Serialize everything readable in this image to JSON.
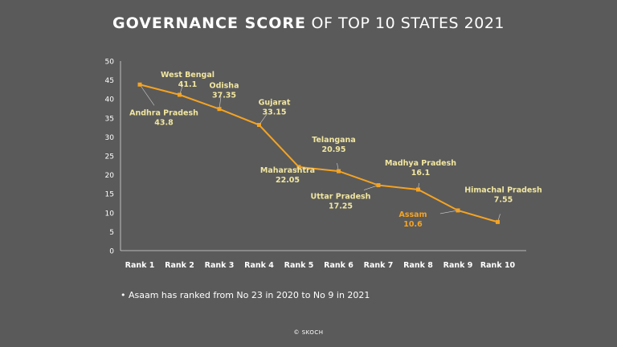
{
  "title": {
    "bold": "GOVERNANCE SCORE",
    "rest": "OF TOP 10 STATES 2021"
  },
  "chart_data": {
    "type": "line",
    "categories": [
      "Rank 1",
      "Rank 2",
      "Rank 3",
      "Rank 4",
      "Rank 5",
      "Rank 6",
      "Rank 7",
      "Rank 8",
      "Rank 9",
      "Rank 10"
    ],
    "series": [
      {
        "values": [
          43.8,
          41.1,
          37.35,
          33.15,
          22.05,
          20.95,
          17.25,
          16.1,
          10.6,
          7.55
        ],
        "color": "#f4a323"
      }
    ],
    "point_labels": [
      {
        "state": "Andhra Pradesh",
        "value": "43.8",
        "color": "#f1e6a0"
      },
      {
        "state": "West Bengal",
        "value": "41.1",
        "color": "#f1e6a0"
      },
      {
        "state": "Odisha",
        "value": "37.35",
        "color": "#f1e6a0"
      },
      {
        "state": "Gujarat",
        "value": "33.15",
        "color": "#f1e6a0"
      },
      {
        "state": "Maharashtra",
        "value": "22.05",
        "color": "#f1e6a0"
      },
      {
        "state": "Telangana",
        "value": "20.95",
        "color": "#f1e6a0"
      },
      {
        "state": "Uttar Pradesh",
        "value": "17.25",
        "color": "#f1e6a0"
      },
      {
        "state": "Madhya Pradesh",
        "value": "16.1",
        "color": "#f1e6a0"
      },
      {
        "state": "Assam",
        "value": "10.6",
        "color": "#f4a323"
      },
      {
        "state": "Himachal Pradesh",
        "value": "7.55",
        "color": "#f1e6a0"
      }
    ],
    "y_ticks": [
      "0",
      "5",
      "10",
      "15",
      "20",
      "25",
      "30",
      "35",
      "40",
      "45",
      "50"
    ],
    "ylim": [
      0,
      50
    ],
    "grid": false,
    "xlabel": "",
    "ylabel": ""
  },
  "note": "• Asaam has ranked from No 23 in 2020 to No 9 in 2021",
  "credit": "© SKOCH"
}
